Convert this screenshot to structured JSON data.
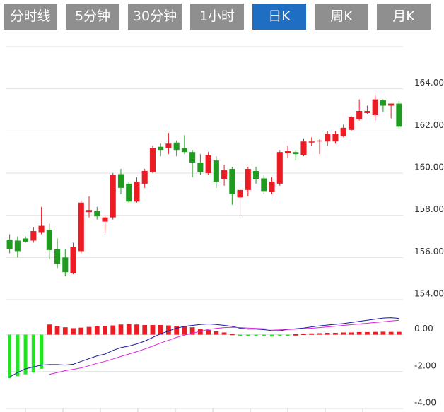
{
  "tabs": [
    {
      "label": "分时线",
      "active": false
    },
    {
      "label": "5分钟",
      "active": false
    },
    {
      "label": "30分钟",
      "active": false
    },
    {
      "label": "1小时",
      "active": false
    },
    {
      "label": "日K",
      "active": true
    },
    {
      "label": "周K",
      "active": false
    },
    {
      "label": "月K",
      "active": false
    }
  ],
  "chart_data": [
    {
      "type": "candlestick",
      "up_color": "#ec1c24",
      "down_color": "#1f9c1f",
      "grid": true,
      "ylim": [
        154,
        166
      ],
      "yticks": [
        {
          "value": 154,
          "label": "154.00"
        },
        {
          "value": 156,
          "label": "156.00"
        },
        {
          "value": 158,
          "label": "158.00"
        },
        {
          "value": 160,
          "label": "160.00"
        },
        {
          "value": 162,
          "label": "162.00"
        },
        {
          "value": 164,
          "label": "164.00"
        }
      ],
      "open": [
        156.85,
        156.8,
        156.9,
        156.8,
        157.2,
        157.3,
        156.4,
        156.0,
        155.25,
        156.3,
        158.15,
        158.2,
        157.7,
        157.9,
        159.95,
        159.5,
        158.65,
        159.5,
        160.05,
        161.25,
        161.2,
        161.45,
        161.2,
        161.0,
        160.5,
        160.0,
        160.6,
        159.7,
        160.2,
        158.85,
        159.2,
        160.1,
        159.75,
        159.1,
        159.5,
        160.95,
        161.0,
        160.85,
        161.45,
        161.5,
        161.5,
        161.5,
        161.75,
        162.05,
        162.55,
        162.85,
        162.75,
        163.45,
        163.2,
        163.3
      ],
      "close": [
        156.4,
        156.3,
        156.75,
        157.25,
        157.5,
        156.35,
        155.7,
        155.3,
        156.5,
        158.6,
        158.25,
        157.95,
        157.9,
        159.9,
        159.3,
        158.65,
        159.6,
        160.1,
        161.2,
        161.1,
        161.4,
        161.1,
        161.0,
        160.5,
        160.05,
        160.85,
        159.6,
        160.15,
        159.0,
        159.2,
        160.2,
        159.7,
        159.15,
        159.6,
        161.0,
        161.05,
        160.9,
        161.5,
        161.5,
        161.55,
        161.85,
        161.85,
        162.15,
        162.65,
        162.95,
        162.95,
        163.5,
        163.2,
        163.3,
        162.2
      ],
      "high": [
        157.1,
        157.0,
        157.0,
        157.45,
        158.4,
        157.6,
        156.9,
        156.4,
        156.7,
        158.7,
        158.9,
        158.4,
        158.0,
        160.0,
        160.2,
        159.6,
        159.8,
        160.2,
        161.3,
        161.4,
        161.9,
        161.55,
        161.8,
        161.1,
        160.9,
        161.0,
        160.8,
        160.4,
        160.3,
        159.3,
        160.3,
        160.3,
        159.9,
        159.8,
        161.1,
        161.3,
        161.1,
        161.65,
        161.7,
        161.6,
        162.0,
        162.0,
        162.3,
        162.7,
        163.5,
        163.2,
        163.7,
        163.5,
        163.3,
        163.4
      ],
      "low": [
        156.2,
        156.0,
        156.7,
        156.7,
        157.1,
        155.9,
        155.5,
        155.1,
        155.2,
        156.2,
        157.9,
        157.8,
        157.2,
        157.8,
        159.0,
        158.6,
        158.6,
        159.3,
        160.0,
        160.8,
        160.9,
        160.8,
        160.9,
        159.8,
        159.9,
        159.9,
        159.3,
        159.4,
        158.5,
        158.0,
        158.9,
        159.5,
        159.0,
        159.0,
        159.4,
        160.7,
        160.6,
        160.8,
        161.3,
        160.9,
        161.3,
        161.4,
        161.7,
        162.0,
        162.5,
        162.8,
        162.5,
        162.9,
        162.6,
        162.1
      ]
    },
    {
      "type": "macd",
      "pos_color": "#ec1c24",
      "neg_color": "#22e522",
      "grid": true,
      "ylim": [
        -4,
        1.9
      ],
      "yticks": [
        {
          "value": -4,
          "label": "-4.00"
        },
        {
          "value": -2,
          "label": "-2.00"
        },
        {
          "value": 0,
          "label": "0.00"
        }
      ],
      "bars": [
        -2.35,
        -2.25,
        -2.15,
        -2.05,
        -1.85,
        0.55,
        0.45,
        0.4,
        0.35,
        0.38,
        0.42,
        0.45,
        0.48,
        0.5,
        0.55,
        0.58,
        0.55,
        0.52,
        0.52,
        0.52,
        0.5,
        0.48,
        0.45,
        0.4,
        0.32,
        0.25,
        0.18,
        0.12,
        0.05,
        -0.03,
        -0.06,
        -0.08,
        -0.08,
        -0.1,
        -0.08,
        -0.05,
        0.03,
        0.06,
        0.07,
        0.08,
        0.1,
        0.1,
        0.12,
        0.12,
        0.14,
        0.14,
        0.15,
        0.16,
        0.15,
        0.15
      ],
      "lines": [
        {
          "color": "#1a1aa0",
          "values": [
            -2.3,
            -2.05,
            -1.85,
            -1.75,
            -1.65,
            -1.62,
            -1.62,
            -1.65,
            -1.6,
            -1.45,
            -1.3,
            -1.15,
            -1.05,
            -0.85,
            -0.7,
            -0.62,
            -0.5,
            -0.35,
            -0.15,
            0.05,
            0.2,
            0.35,
            0.45,
            0.5,
            0.55,
            0.58,
            0.55,
            0.5,
            0.45,
            0.35,
            0.3,
            0.3,
            0.27,
            0.22,
            0.22,
            0.28,
            0.32,
            0.36,
            0.42,
            0.48,
            0.52,
            0.56,
            0.6,
            0.66,
            0.72,
            0.78,
            0.84,
            0.9,
            0.92,
            0.88
          ]
        },
        {
          "color": "#e020e0",
          "values": [
            null,
            null,
            null,
            null,
            null,
            -2.15,
            -2.05,
            -1.95,
            -1.88,
            -1.8,
            -1.68,
            -1.55,
            -1.45,
            -1.32,
            -1.18,
            -1.05,
            -0.92,
            -0.78,
            -0.62,
            -0.45,
            -0.3,
            -0.15,
            -0.02,
            0.08,
            0.18,
            0.28,
            0.34,
            0.38,
            0.4,
            0.38,
            0.36,
            0.34,
            0.32,
            0.3,
            0.28,
            0.28,
            0.3,
            0.32,
            0.35,
            0.38,
            0.42,
            0.46,
            0.5,
            0.54,
            0.58,
            0.62,
            0.66,
            0.7,
            0.74,
            0.78
          ]
        }
      ]
    }
  ]
}
